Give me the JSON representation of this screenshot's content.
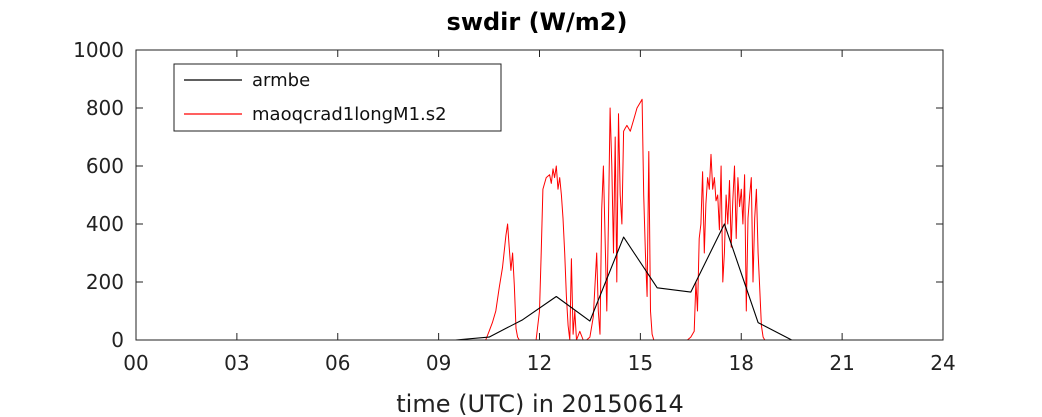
{
  "chart_data": {
    "type": "line",
    "title": "swdir  (W/m2)",
    "xlabel": "time (UTC) in 20150614",
    "ylabel": "",
    "xlim": [
      0,
      24
    ],
    "ylim": [
      0,
      1000
    ],
    "x_ticks": [
      0,
      3,
      6,
      9,
      12,
      15,
      18,
      21,
      24
    ],
    "x_tick_labels": [
      "00",
      "03",
      "06",
      "09",
      "12",
      "15",
      "18",
      "21",
      "24"
    ],
    "y_ticks": [
      0,
      200,
      400,
      600,
      800,
      1000
    ],
    "y_tick_labels": [
      "0",
      "200",
      "400",
      "600",
      "800",
      "1000"
    ],
    "grid": false,
    "legend": "top-left",
    "series": [
      {
        "name": "armbe",
        "color": "#000000",
        "x": [
          0,
          9.5,
          10.5,
          11.5,
          12.5,
          13.5,
          14.5,
          15.5,
          16.5,
          17.5,
          18.5,
          19.5,
          20.5,
          24
        ],
        "y": [
          0,
          0,
          10,
          70,
          150,
          65,
          355,
          180,
          165,
          400,
          60,
          0,
          0,
          0
        ]
      },
      {
        "name": "maoqcrad1longM1.s2",
        "color": "#ff0000",
        "x": [
          0,
          10.4,
          10.5,
          10.6,
          10.7,
          10.8,
          10.9,
          11.0,
          11.05,
          11.1,
          11.15,
          11.2,
          11.25,
          11.3,
          11.35,
          11.4,
          11.5,
          11.6,
          11.7,
          11.8,
          11.9,
          12.0,
          12.05,
          12.1,
          12.2,
          12.3,
          12.35,
          12.4,
          12.45,
          12.5,
          12.55,
          12.6,
          12.65,
          12.7,
          12.75,
          12.8,
          12.85,
          12.9,
          12.95,
          13.0,
          13.05,
          13.1,
          13.2,
          13.3,
          13.4,
          13.5,
          13.6,
          13.7,
          13.75,
          13.8,
          13.85,
          13.9,
          13.95,
          14.0,
          14.05,
          14.1,
          14.15,
          14.2,
          14.25,
          14.3,
          14.35,
          14.4,
          14.45,
          14.5,
          14.55,
          14.6,
          14.7,
          14.8,
          14.9,
          15.0,
          15.05,
          15.1,
          15.15,
          15.2,
          15.25,
          15.3,
          15.35,
          15.4,
          15.45,
          15.5,
          15.6,
          15.8,
          16.0,
          16.2,
          16.4,
          16.5,
          16.6,
          16.65,
          16.7,
          16.75,
          16.8,
          16.85,
          16.9,
          16.95,
          17.0,
          17.05,
          17.1,
          17.15,
          17.2,
          17.25,
          17.3,
          17.35,
          17.4,
          17.45,
          17.5,
          17.55,
          17.6,
          17.65,
          17.7,
          17.75,
          17.8,
          17.85,
          17.9,
          17.95,
          18.0,
          18.05,
          18.1,
          18.15,
          18.2,
          18.25,
          18.3,
          18.35,
          18.4,
          18.45,
          18.5,
          18.55,
          18.6,
          18.65,
          18.7,
          18.8,
          19.0,
          20.5,
          24
        ],
        "y": [
          0,
          0,
          30,
          60,
          100,
          180,
          250,
          360,
          400,
          320,
          240,
          300,
          190,
          40,
          10,
          0,
          0,
          0,
          0,
          0,
          0,
          100,
          300,
          520,
          560,
          570,
          540,
          590,
          560,
          600,
          520,
          560,
          500,
          420,
          300,
          150,
          50,
          0,
          280,
          20,
          100,
          0,
          30,
          0,
          0,
          10,
          80,
          300,
          100,
          20,
          450,
          600,
          350,
          100,
          400,
          800,
          600,
          300,
          700,
          200,
          780,
          500,
          400,
          720,
          730,
          740,
          720,
          760,
          800,
          820,
          830,
          500,
          300,
          150,
          650,
          100,
          20,
          0,
          0,
          0,
          0,
          0,
          0,
          0,
          0,
          10,
          30,
          200,
          100,
          350,
          400,
          580,
          300,
          470,
          560,
          520,
          640,
          520,
          560,
          480,
          500,
          380,
          600,
          200,
          300,
          500,
          400,
          550,
          320,
          480,
          600,
          350,
          560,
          460,
          520,
          400,
          570,
          100,
          420,
          500,
          560,
          200,
          420,
          520,
          300,
          180,
          50,
          10,
          0,
          0,
          0,
          0,
          0
        ]
      }
    ]
  }
}
